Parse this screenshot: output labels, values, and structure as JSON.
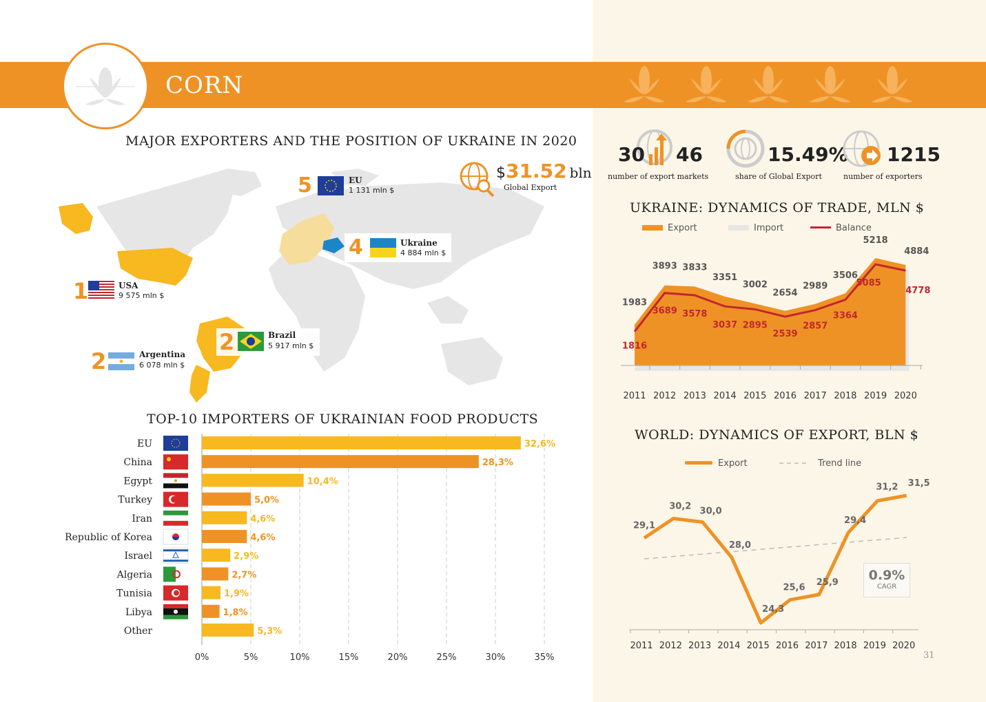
{
  "header": {
    "title": "CORN",
    "page_number": "31"
  },
  "colors": {
    "orange": "#ef9225",
    "yellow": "#f7b820",
    "dark_red": "#c0272d",
    "light_bg": "#fcf6e9"
  },
  "map_section": {
    "title": "MAJOR EXPORTERS AND THE POSITION OF UKRAINE IN 2020",
    "global_export": {
      "prefix": "$",
      "value": "31.52",
      "unit": "bln",
      "label": "Global Export"
    },
    "exporters": [
      {
        "rank": "1",
        "name": "USA",
        "value": "9 575 mln $"
      },
      {
        "rank": "2",
        "name": "Argentina",
        "value": "6 078 mln $"
      },
      {
        "rank": "2",
        "name": "Brazil",
        "value": "5 917 mln $"
      },
      {
        "rank": "4",
        "name": "Ukraine",
        "value": "4 884 mln $"
      },
      {
        "rank": "5",
        "name": "EU",
        "value": "1 131 mln $"
      }
    ]
  },
  "kpis": [
    {
      "value_left": "30",
      "value_right": "46",
      "label": "number of  export markets",
      "icon": "globe-arrows-icon"
    },
    {
      "value": "15.49%",
      "label": "share of Global Export",
      "icon": "globe-pie-icon"
    },
    {
      "value": "1215",
      "label": "number of exporters",
      "icon": "globe-arrow-icon"
    }
  ],
  "chart_data": [
    {
      "type": "bar",
      "orientation": "horizontal",
      "title": "TOP-10 IMPORTERS OF UKRAINIAN FOOD PRODUCTS",
      "categories": [
        "EU",
        "China",
        "Egypt",
        "Turkey",
        "Iran",
        "Republic of Korea",
        "Israel",
        "Algeria",
        "Tunisia",
        "Libya",
        "Other"
      ],
      "values": [
        32.6,
        28.3,
        10.4,
        5.0,
        4.6,
        4.6,
        2.9,
        2.7,
        1.9,
        1.8,
        5.3
      ],
      "value_labels": [
        "32,6%",
        "28,3%",
        "10,4%",
        "5,0%",
        "4,6%",
        "4,6%",
        "2,9%",
        "2,7%",
        "1,9%",
        "1,8%",
        "5,3%"
      ],
      "xticks": [
        "0%",
        "5%",
        "10%",
        "15%",
        "20%",
        "25%",
        "30%",
        "35%"
      ],
      "xlim": [
        0,
        35
      ],
      "grid": true
    },
    {
      "type": "area",
      "title": "UKRAINE: DYNAMICS OF TRADE, MLN $",
      "legend": [
        "Export",
        "Import",
        "Balance"
      ],
      "x": [
        "2011",
        "2012",
        "2013",
        "2014",
        "2015",
        "2016",
        "2017",
        "2018",
        "2019",
        "2020"
      ],
      "series": [
        {
          "name": "Export",
          "values": [
            1983,
            3893,
            3833,
            3351,
            3002,
            2654,
            2989,
            3506,
            5218,
            4884
          ]
        },
        {
          "name": "Balance",
          "values": [
            1816,
            3689,
            3578,
            3037,
            2895,
            2539,
            2857,
            3364,
            5085,
            4778
          ]
        }
      ]
    },
    {
      "type": "line",
      "title": "WORLD: DYNAMICS OF EXPORT, BLN $",
      "legend": [
        "Export",
        "Trend line"
      ],
      "x": [
        "2011",
        "2012",
        "2013",
        "2014",
        "2015",
        "2016",
        "2017",
        "2018",
        "2019",
        "2020"
      ],
      "series": [
        {
          "name": "Export",
          "values": [
            29.1,
            30.2,
            30.0,
            28.0,
            24.3,
            25.6,
            25.9,
            29.4,
            31.2,
            31.5
          ]
        }
      ],
      "value_labels": [
        "29,1",
        "30,2",
        "30,0",
        "28,0",
        "24,3",
        "25,6",
        "25,9",
        "29,4",
        "31,2",
        "31,5"
      ],
      "cagr": {
        "value": "0.9%",
        "label": "CAGR"
      }
    }
  ]
}
